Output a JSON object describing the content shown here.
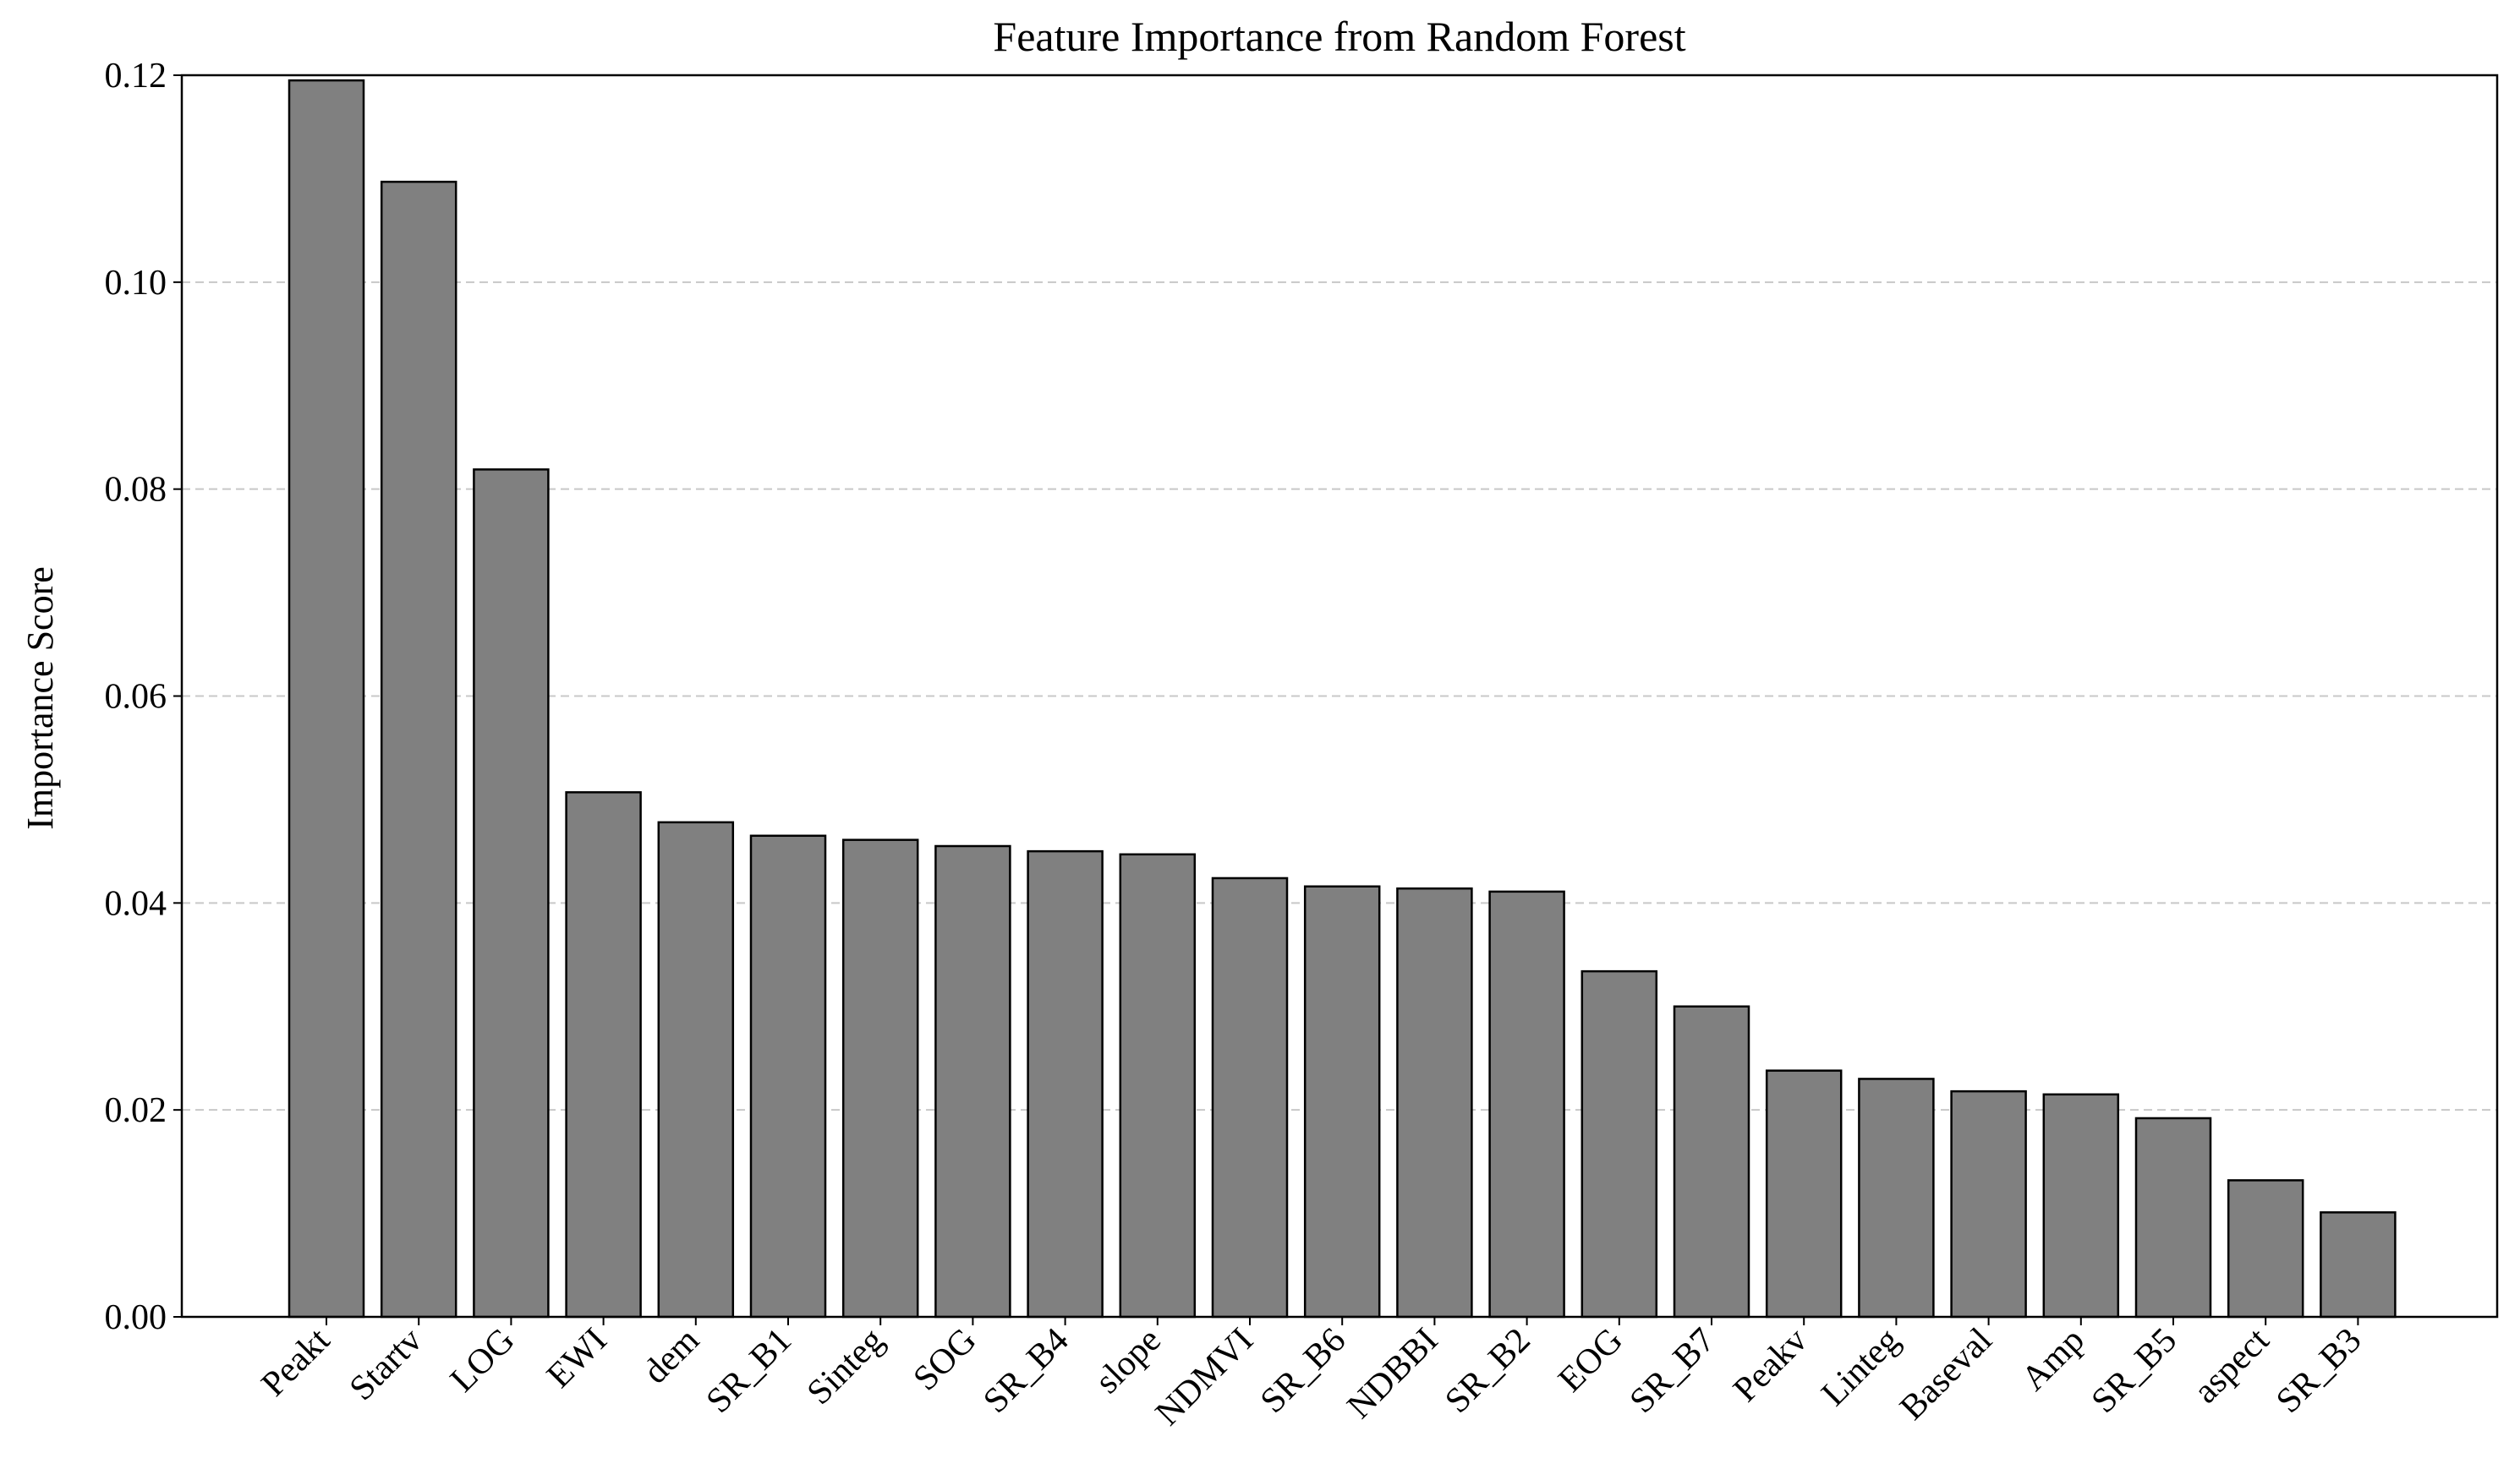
{
  "chart_data": {
    "type": "bar",
    "title": "Feature Importance from Random Forest",
    "y_label": "Importance Score",
    "categories": [
      "Peakt",
      "Startv",
      "LOG",
      "EWI",
      "dem",
      "SR_B1",
      "Sinteg",
      "SOG",
      "SR_B4",
      "slope",
      "NDMVI",
      "SR_B6",
      "NDBBI",
      "SR_B2",
      "EOG",
      "SR_B7",
      "Peakv",
      "Linteg",
      "Baseval",
      "Amp",
      "SR_B5",
      "aspect",
      "SR_B3"
    ],
    "values": [
      0.1195,
      0.1097,
      0.0819,
      0.0507,
      0.0478,
      0.0465,
      0.0461,
      0.0455,
      0.045,
      0.0447,
      0.0424,
      0.0416,
      0.0414,
      0.0411,
      0.0334,
      0.03,
      0.0238,
      0.023,
      0.0218,
      0.0215,
      0.0192,
      0.0132,
      0.0101
    ],
    "color": "#808080",
    "ylim": [
      0,
      0.12
    ],
    "yticks": [
      {
        "value": 0,
        "label": "0.00"
      },
      {
        "value": 0.02,
        "label": "0.02"
      },
      {
        "value": 0.04,
        "label": "0.04"
      },
      {
        "value": 0.06,
        "label": "0.06"
      },
      {
        "value": 0.08,
        "label": "0.08"
      },
      {
        "value": 0.1,
        "label": "0.10"
      },
      {
        "value": 0.12,
        "label": "0.12"
      }
    ],
    "grid": true
  }
}
